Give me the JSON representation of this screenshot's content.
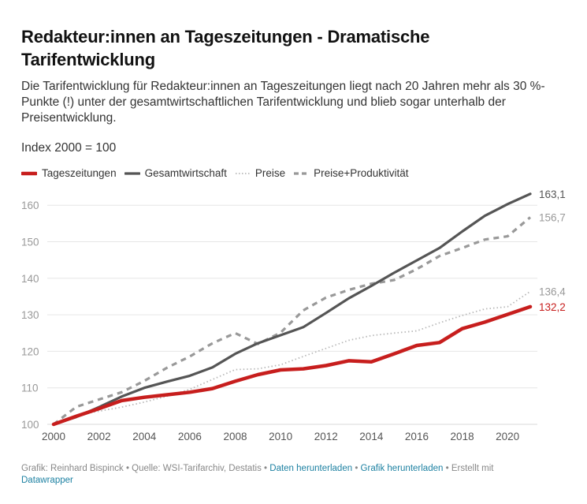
{
  "header": {
    "title": "Redakteur:innen an Tageszeitungen - Dramatische Tarifentwicklung",
    "subtitle": "Die Tarifentwicklung für Redakteur:innen an Tageszeitungen liegt nach 20 Jahren mehr als 30 %-Punkte (!) unter der gesamtwirtschaftlichen Tarifentwicklung und blieb sogar unterhalb der Preisentwicklung.",
    "index_note": "Index 2000 = 100"
  },
  "legend": [
    {
      "label": "Tageszeitungen",
      "style": "solid-thick",
      "color": "#c71e1d"
    },
    {
      "label": "Gesamtwirtschaft",
      "style": "solid",
      "color": "#555555"
    },
    {
      "label": "Preise",
      "style": "dotted",
      "color": "#b8b8b8"
    },
    {
      "label": "Preise+Produktivität",
      "style": "dashed",
      "color": "#999999"
    }
  ],
  "chart_data": {
    "type": "line",
    "title": "Redakteur:innen an Tageszeitungen - Dramatische Tarifentwicklung",
    "xlabel": "",
    "ylabel": "Index 2000 = 100",
    "x": [
      2000,
      2001,
      2002,
      2003,
      2004,
      2005,
      2006,
      2007,
      2008,
      2009,
      2010,
      2011,
      2012,
      2013,
      2014,
      2015,
      2016,
      2017,
      2018,
      2019,
      2020,
      2021
    ],
    "x_ticks": [
      2000,
      2002,
      2004,
      2006,
      2008,
      2010,
      2012,
      2014,
      2016,
      2018,
      2020
    ],
    "y_ticks": [
      100,
      110,
      120,
      130,
      140,
      150,
      160
    ],
    "ylim": [
      100,
      163.1
    ],
    "xlim": [
      2000,
      2021
    ],
    "grid": "horizontal",
    "legend_position": "top-left",
    "series": [
      {
        "name": "Tageszeitungen",
        "color": "#c71e1d",
        "style": "solid-thick",
        "end_label": "132,2",
        "values": [
          100,
          102.2,
          104.3,
          106.5,
          107.4,
          108.1,
          108.8,
          109.8,
          111.8,
          113.6,
          114.9,
          115.2,
          116.1,
          117.4,
          117.1,
          119.3,
          121.6,
          122.4,
          126.2,
          128.0,
          130.1,
          132.2
        ]
      },
      {
        "name": "Gesamtwirtschaft",
        "color": "#555555",
        "style": "solid",
        "end_label": "163,1",
        "values": [
          100,
          102.0,
          104.7,
          107.6,
          110.0,
          111.7,
          113.3,
          115.6,
          119.3,
          122.2,
          124.4,
          126.6,
          130.5,
          134.5,
          137.9,
          141.5,
          144.9,
          148.3,
          152.8,
          157.1,
          160.3,
          163.1
        ]
      },
      {
        "name": "Preise",
        "color": "#b8b8b8",
        "style": "dotted",
        "end_label": "136,4",
        "values": [
          100,
          102.5,
          103.6,
          104.7,
          106.1,
          107.7,
          109.6,
          112.3,
          115.0,
          115.2,
          116.3,
          118.6,
          120.8,
          123.0,
          124.3,
          125.0,
          125.6,
          127.8,
          129.8,
          131.6,
          132.2,
          136.4
        ]
      },
      {
        "name": "Preise+Produktivität",
        "color": "#999999",
        "style": "dashed",
        "end_label": "156,7",
        "values": [
          100,
          104.8,
          106.8,
          108.8,
          111.9,
          115.5,
          118.6,
          122.2,
          125.0,
          122.0,
          125.1,
          131.2,
          134.7,
          136.8,
          138.5,
          139.5,
          142.5,
          146.1,
          148.3,
          150.6,
          151.5,
          156.7
        ]
      }
    ]
  },
  "footer": {
    "credit": "Grafik: Reinhard Bispinck",
    "sep": " • ",
    "source": "Quelle: WSI-Tarifarchiv, Destatis",
    "download_data": "Daten herunterladen",
    "download_image": "Grafik herunterladen",
    "made_with": "Erstellt mit",
    "tool_link": "Datawrapper"
  }
}
